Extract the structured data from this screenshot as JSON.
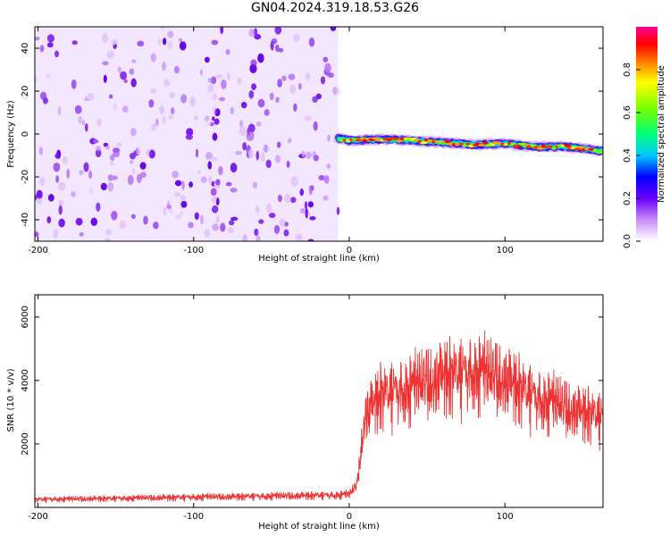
{
  "title": "GN04.2024.319.18.53.G26",
  "chart_data": [
    {
      "type": "heatmap",
      "xlabel": "Height of straight line (km)",
      "ylabel": "Frequency (Hz)",
      "xlim": [
        -202,
        163
      ],
      "ylim": [
        -50,
        50
      ],
      "x_ticks": [
        -200,
        -100,
        0,
        100
      ],
      "y_ticks": [
        -40,
        -20,
        0,
        20,
        40
      ],
      "grid": false,
      "colorbar": {
        "label": "Normalized spectral amplitude",
        "range": [
          0,
          1
        ],
        "ticks": [
          "0.0",
          "0.2",
          "0.4",
          "0.6",
          "0.8"
        ]
      },
      "noise_region": {
        "x_range": [
          -202,
          -7
        ],
        "y_range": [
          -50,
          50
        ],
        "amplitude": [
          0.1,
          0.35
        ]
      },
      "signal_ridge": {
        "x": [
          -7,
          0,
          20,
          40,
          60,
          80,
          100,
          120,
          140,
          163
        ],
        "frequency": [
          -2,
          -3,
          -2.5,
          -3,
          -4,
          -5,
          -4.5,
          -6,
          -6,
          -8
        ]
      }
    },
    {
      "type": "line",
      "xlabel": "Height of straight line (km)",
      "ylabel": "SNR (10 * v/v)",
      "xlim": [
        -202,
        163
      ],
      "ylim": [
        0,
        6700
      ],
      "x_ticks": [
        -200,
        -100,
        0,
        100
      ],
      "y_ticks": [
        2000,
        4000,
        6000
      ],
      "grid": false,
      "series": [
        {
          "color": "#ee3333",
          "x": [
            -202,
            -150,
            -100,
            -50,
            -10,
            0,
            5,
            10,
            20,
            40,
            60,
            80,
            100,
            120,
            140,
            163
          ],
          "y": [
            250,
            280,
            320,
            350,
            380,
            400,
            700,
            2900,
            3500,
            3700,
            4100,
            4200,
            4000,
            3400,
            3100,
            2800
          ]
        }
      ]
    }
  ],
  "labels": {
    "x_tick_text": [
      "-200",
      "-100",
      "0",
      "100"
    ],
    "top_y_tick_text": [
      "-40",
      "-20",
      "0",
      "20",
      "40"
    ],
    "bottom_y_tick_text": [
      "2000",
      "4000",
      "6000"
    ],
    "colorbar_tick_text": [
      "0.0",
      "0.2",
      "0.4",
      "0.6",
      "0.8"
    ]
  }
}
